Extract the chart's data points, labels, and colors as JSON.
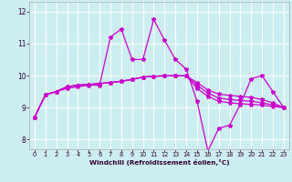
{
  "xlabel": "Windchill (Refroidissement éolien,°C)",
  "background_color": "#cceef0",
  "grid_color": "#ffffff",
  "line_color": "#cc00cc",
  "xlim": [
    -0.5,
    23.5
  ],
  "ylim": [
    7.7,
    12.3
  ],
  "yticks": [
    8,
    9,
    10,
    11,
    12
  ],
  "xticks": [
    0,
    1,
    2,
    3,
    4,
    5,
    6,
    7,
    8,
    9,
    10,
    11,
    12,
    13,
    14,
    15,
    16,
    17,
    18,
    19,
    20,
    21,
    22,
    23
  ],
  "series": [
    [
      8.7,
      9.4,
      9.5,
      9.6,
      9.65,
      9.7,
      9.7,
      11.2,
      11.45,
      10.5,
      10.5,
      11.75,
      11.1,
      10.5,
      10.2,
      9.2,
      7.65,
      8.35,
      8.45,
      9.1,
      9.9,
      10.0,
      9.5,
      9.0
    ],
    [
      8.7,
      9.4,
      9.5,
      9.65,
      9.7,
      9.72,
      9.75,
      9.78,
      9.82,
      9.88,
      9.95,
      9.98,
      9.99,
      9.99,
      9.99,
      9.6,
      9.35,
      9.2,
      9.15,
      9.12,
      9.1,
      9.08,
      9.03,
      9.0
    ],
    [
      8.7,
      9.4,
      9.5,
      9.65,
      9.7,
      9.72,
      9.75,
      9.78,
      9.82,
      9.88,
      9.95,
      9.98,
      9.99,
      9.99,
      9.99,
      9.7,
      9.45,
      9.3,
      9.25,
      9.22,
      9.2,
      9.15,
      9.08,
      9.0
    ],
    [
      8.7,
      9.4,
      9.5,
      9.65,
      9.7,
      9.72,
      9.75,
      9.78,
      9.82,
      9.88,
      9.95,
      9.98,
      9.99,
      9.99,
      9.99,
      9.78,
      9.55,
      9.42,
      9.38,
      9.35,
      9.32,
      9.25,
      9.15,
      9.0
    ]
  ]
}
